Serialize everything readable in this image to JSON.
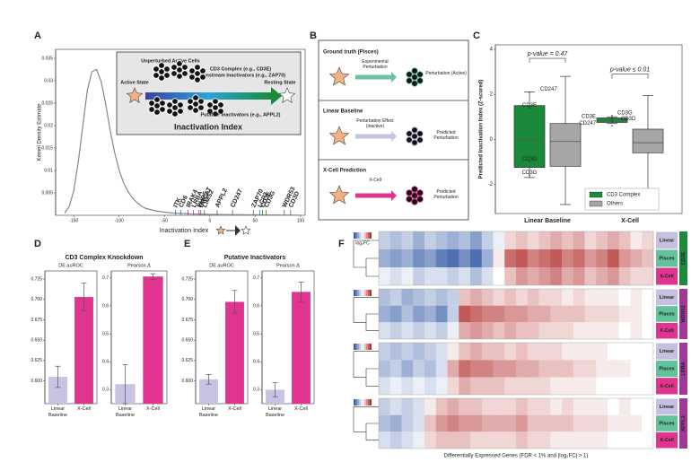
{
  "figure": {
    "panel_labels": [
      "A",
      "B",
      "C",
      "D",
      "E",
      "F"
    ]
  },
  "diagrams": {
    "A_inset": {
      "unperturbed": "Unperturbed Active Cells",
      "active": "Active State",
      "resting": "Resting State",
      "cd3": "CD3 Complex (e.g., CD3E)",
      "downstream": "Downstream Inactivators (e.g., ZAP70)",
      "putative": "Putative Inactivators (e.g., APPL2)",
      "index": "Inactivation Index"
    },
    "B": [
      {
        "title": "Ground truth (Pisces)",
        "arrow_label": "Experimental Perturbation",
        "result": "Perturbation (Active)",
        "color": "#6cc3a0"
      },
      {
        "title": "Linear Baseline",
        "arrow_label": "Perturbation Effect (inactive)",
        "result": "Predicted Perturbation",
        "color": "#c9c3e3"
      },
      {
        "title": "X-Cell Prediction",
        "arrow_label": "X-Cell",
        "result": "Predicted Perturbation",
        "color": "#e0358f"
      }
    ]
  },
  "chart_data": [
    {
      "type": "line",
      "x_label": "Inactivation Index",
      "y_label": "Kernel Density Estimate",
      "color": "#888888",
      "x": [
        -160,
        -155,
        -150,
        -145,
        -140,
        -135,
        -130,
        -125,
        -120,
        -115,
        -110,
        -105,
        -100,
        -95,
        -90,
        -85,
        -80,
        -75,
        -70,
        -60,
        -50,
        -40,
        -20,
        0,
        50,
        100
      ],
      "values": [
        0.0005,
        0.002,
        0.0055,
        0.012,
        0.02,
        0.028,
        0.032,
        0.0325,
        0.03,
        0.025,
        0.019,
        0.014,
        0.01,
        0.0072,
        0.0052,
        0.0038,
        0.0028,
        0.002,
        0.0015,
        0.001,
        0.0007,
        0.0005,
        0.0003,
        0.0002,
        0.0001,
        5e-05
      ],
      "xlim": [
        -170,
        105
      ],
      "ylim": [
        0,
        0.037
      ],
      "xticks": [
        -150,
        -100,
        -50,
        0,
        50,
        100
      ],
      "yticks": [
        0.005,
        0.01,
        0.015,
        0.02,
        0.025,
        0.03,
        0.035
      ],
      "annotations": [
        {
          "text": "ITK",
          "x": -38,
          "color": "#3b6fc4"
        },
        {
          "text": "CD6",
          "x": -32,
          "color": "#3b6fc4"
        },
        {
          "text": "IRAK4",
          "x": -24,
          "color": "#a2379a"
        },
        {
          "text": "LRBA",
          "x": -18,
          "color": "#a2379a"
        },
        {
          "text": "PHD5",
          "x": -12,
          "color": "#a2379a"
        },
        {
          "text": "LIMS2",
          "x": -6,
          "color": "#a2379a"
        },
        {
          "text": "BRCAT",
          "x": -10,
          "color": "#a2379a"
        },
        {
          "text": "APPL2",
          "x": 8,
          "color": "#a2379a"
        },
        {
          "text": "CD247",
          "x": 25,
          "color": "#1a8a3a"
        },
        {
          "text": "ZAP70",
          "x": 48,
          "color": "#3b6fc4"
        },
        {
          "text": "LCP2",
          "x": 55,
          "color": "#3b6fc4"
        },
        {
          "text": "CD3E",
          "x": 58,
          "color": "#1a8a3a"
        },
        {
          "text": "CD3G",
          "x": 62,
          "color": "#1a8a3a"
        },
        {
          "text": "WDR53",
          "x": 82,
          "color": "#a2379a"
        },
        {
          "text": "CD3D",
          "x": 89,
          "color": "#1a8a3a"
        }
      ]
    },
    {
      "type": "box",
      "y_label": "Predicted Inactivation Index (Z-scored)",
      "categories": [
        "Linear Baseline",
        "X-Cell"
      ],
      "category_colors": [
        "#c9c3e3",
        "#e0358f"
      ],
      "ylim": [
        -3.3,
        4.2
      ],
      "yticks": [
        -2,
        0,
        2,
        4
      ],
      "legend": "lower right",
      "series": [
        {
          "name": "CD3 Complex",
          "color": "#1a8a3a",
          "boxes": [
            {
              "min": -1.7,
              "q1": -1.25,
              "median": 0.0,
              "q3": 1.5,
              "max": 2.1
            },
            {
              "min": 0.7,
              "q1": 0.75,
              "median": 0.85,
              "q3": 0.95,
              "max": 1.0
            }
          ]
        },
        {
          "name": "Others",
          "color": "#a6a6a6",
          "boxes": [
            {
              "min": -2.9,
              "q1": -1.2,
              "median": -0.1,
              "q3": 0.7,
              "max": 2.8
            },
            {
              "min": -2.9,
              "q1": -0.6,
              "median": -0.15,
              "q3": 0.45,
              "max": 1.95
            }
          ]
        }
      ],
      "points": [
        {
          "name": "CD247",
          "category": 0,
          "value": 2.1
        },
        {
          "name": "CD3E",
          "category": 0,
          "value": 1.4
        },
        {
          "name": "CD3D",
          "category": 0,
          "value": -1.0
        },
        {
          "name": "CD3G",
          "category": 0,
          "value": -1.6
        },
        {
          "name": "CD3E",
          "category": 1,
          "value": 0.9
        },
        {
          "name": "CD3G",
          "category": 1,
          "value": 1.05
        },
        {
          "name": "CD3D",
          "category": 1,
          "value": 0.8
        },
        {
          "name": "CD247",
          "category": 1,
          "value": 0.6
        }
      ],
      "annotations": [
        {
          "text": "p-value = 0.47",
          "category": 0,
          "y": 3.6
        },
        {
          "text": "p-value ≤ 0.01",
          "category": 1,
          "y": 2.9
        }
      ]
    },
    {
      "type": "bar",
      "title": "CD3 Complex Knockdown",
      "title_color": "#1a8a3a",
      "subtitle": "DE auROC",
      "categories": [
        "Linear Baseline",
        "X-Cell"
      ],
      "colors": [
        "#c9c3e3",
        "#e0358f"
      ],
      "values": [
        0.605,
        0.703
      ],
      "errors": [
        0.013,
        0.017
      ],
      "ylim": [
        0.572,
        0.735
      ],
      "yticks": [
        {
          "value": 0.6,
          "label": "0.600"
        },
        {
          "value": 0.625,
          "label": "0.625"
        },
        {
          "value": 0.65,
          "label": "0.650"
        },
        {
          "value": 0.675,
          "label": "0.675"
        },
        {
          "value": 0.7,
          "label": "0.700"
        },
        {
          "value": 0.725,
          "label": "0.725"
        }
      ]
    },
    {
      "type": "bar",
      "subtitle": "Pearson Δ",
      "categories": [
        "Linear Baseline",
        "X-Cell"
      ],
      "colors": [
        "#c9c3e3",
        "#e0358f"
      ],
      "values": [
        0.32,
        0.705
      ],
      "errors": [
        0.07,
        0.01
      ],
      "ylim": [
        0.25,
        0.725
      ],
      "yticks": [
        0.3,
        0.4,
        0.5,
        0.6,
        0.7
      ]
    },
    {
      "type": "bar",
      "title": "Putative Inactivators",
      "title_color": "#a2379a",
      "subtitle": "DE auROC",
      "categories": [
        "Linear Baseline",
        "X-Cell"
      ],
      "colors": [
        "#c9c3e3",
        "#e0358f"
      ],
      "values": [
        0.602,
        0.697
      ],
      "errors": [
        0.006,
        0.014
      ],
      "ylim": [
        0.572,
        0.735
      ],
      "yticks": [
        {
          "value": 0.6,
          "label": "0.600"
        },
        {
          "value": 0.625,
          "label": "0.625"
        },
        {
          "value": 0.65,
          "label": "0.650"
        },
        {
          "value": 0.675,
          "label": "0.675"
        },
        {
          "value": 0.7,
          "label": "0.700"
        },
        {
          "value": 0.725,
          "label": "0.725"
        }
      ]
    },
    {
      "type": "bar",
      "subtitle": "Pearson Δ",
      "categories": [
        "Linear Baseline",
        "X-Cell"
      ],
      "colors": [
        "#c9c3e3",
        "#e0358f"
      ],
      "values": [
        0.3,
        0.65
      ],
      "errors": [
        0.025,
        0.035
      ],
      "ylim": [
        0.25,
        0.725
      ],
      "yticks": [
        0.3,
        0.4,
        0.5,
        0.6,
        0.7
      ]
    },
    {
      "type": "heatmap",
      "x_label": "Differentially Expressed Genes (FDR < 1% and |log₂FC| > 1)",
      "legend_title": "log₂FC",
      "clim": [
        -1,
        1
      ],
      "neg_color": "#3a5fa8",
      "pos_color": "#b2302e",
      "rows": [
        "Linear",
        "Pisces",
        "X-Cell"
      ],
      "row_colors": [
        "#c7bfe0",
        "#62c29a",
        "#e0358f"
      ],
      "blocks": [
        {
          "gene": "CD3E",
          "color": "#1a8a3a",
          "values": [
            [
              -0.3,
              -0.4,
              -0.3,
              -0.5,
              -0.3,
              -0.4,
              -0.5,
              -0.4,
              -0.6,
              -0.3,
              -0.1,
              0.2,
              0.3,
              0.2,
              0.3,
              0.4,
              0.3,
              0.4,
              0.2,
              0.3,
              0.4,
              0.3,
              0.1,
              0.2
            ],
            [
              -0.5,
              -0.6,
              -0.5,
              -0.7,
              -0.6,
              -0.8,
              -0.9,
              -0.7,
              -0.9,
              -0.5,
              0.1,
              0.7,
              0.8,
              0.6,
              0.7,
              0.8,
              0.6,
              0.7,
              0.5,
              0.6,
              0.8,
              0.5,
              0.4,
              0.3
            ],
            [
              -0.1,
              -0.2,
              -0.1,
              -0.3,
              -0.2,
              -0.2,
              -0.3,
              -0.2,
              -0.4,
              -0.2,
              0,
              0.3,
              0.5,
              0.4,
              0.5,
              0.6,
              0.4,
              0.5,
              0.3,
              0.4,
              0.5,
              0.3,
              0.2,
              0.2
            ]
          ]
        },
        {
          "gene": "WDR53",
          "color": "#a2379a",
          "values": [
            [
              -0.4,
              -0.3,
              -0.5,
              -0.4,
              -0.3,
              -0.4,
              -0.3,
              0.3,
              0.4,
              0.3,
              0.2,
              0.3,
              0.2,
              0.3,
              0.2,
              0.2,
              0.1,
              0.2,
              0.1,
              0.1,
              0.1,
              0,
              0.1,
              0
            ],
            [
              -0.5,
              -0.6,
              -0.4,
              -0.6,
              -0.5,
              -0.7,
              -0.3,
              0.8,
              0.7,
              0.6,
              0.6,
              0.5,
              0.5,
              0.4,
              0.4,
              0.3,
              0.3,
              0.3,
              0.2,
              0.2,
              0.2,
              0.1,
              0.1,
              0
            ],
            [
              -0.2,
              -0.3,
              -0.2,
              -0.3,
              -0.2,
              -0.3,
              -0.1,
              0.4,
              0.5,
              0.4,
              0.3,
              0.4,
              0.3,
              0.3,
              0.2,
              0.2,
              0.2,
              0.1,
              0.1,
              0.1,
              0.1,
              0,
              0.1,
              0
            ]
          ]
        },
        {
          "gene": "LRBA",
          "color": "#a2379a",
          "values": [
            [
              -0.3,
              -0.4,
              -0.3,
              -0.4,
              -0.3,
              -0.2,
              0.1,
              0.3,
              0.4,
              0.3,
              0.3,
              0.2,
              0.3,
              0.2,
              0.2,
              0.2,
              0.1,
              0.1,
              0.1,
              0.1,
              0,
              0,
              0,
              0
            ],
            [
              -0.4,
              -0.3,
              -0.5,
              -0.3,
              -0.4,
              -0.2,
              0.4,
              0.7,
              0.6,
              0.6,
              0.5,
              0.5,
              0.4,
              0.4,
              0.3,
              0.3,
              0.3,
              0.2,
              0.2,
              0.1,
              0.1,
              0.1,
              0,
              0
            ],
            [
              -0.2,
              -0.1,
              -0.2,
              -0.1,
              -0.2,
              -0.1,
              0.2,
              0.4,
              0.3,
              0.3,
              0.3,
              0.2,
              0.2,
              0.2,
              0.2,
              0.1,
              0.1,
              0.1,
              0.1,
              0,
              0,
              0,
              0,
              0
            ]
          ]
        },
        {
          "gene": "APPL2",
          "color": "#a2379a",
          "values": [
            [
              -0.3,
              -0.2,
              -0.3,
              -0.2,
              0.1,
              0.3,
              0.4,
              0.3,
              0.3,
              0.2,
              0.2,
              0.2,
              0.3,
              0.2,
              0.2,
              0.1,
              0.2,
              0.1,
              0.1,
              0.1,
              0,
              0.1,
              0,
              0
            ],
            [
              -0.4,
              -0.5,
              -0.3,
              -0.2,
              0.3,
              0.5,
              0.6,
              0.5,
              0.5,
              0.4,
              0.4,
              0.4,
              0.5,
              0.3,
              0.3,
              0.3,
              0.3,
              0.2,
              0.2,
              0.2,
              0.1,
              0.1,
              0.1,
              0
            ],
            [
              -0.2,
              -0.3,
              -0.2,
              -0.1,
              0.2,
              0.3,
              0.3,
              0.3,
              0.2,
              0.2,
              0.2,
              0.2,
              0.3,
              0.2,
              0.2,
              0.1,
              0.1,
              0.1,
              0.1,
              0.1,
              0,
              0,
              0,
              0
            ]
          ]
        }
      ]
    }
  ]
}
